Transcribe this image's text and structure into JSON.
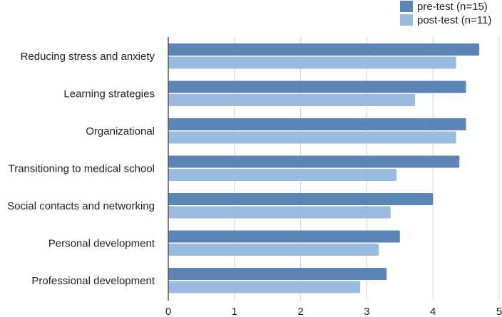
{
  "chart_data": {
    "type": "bar",
    "orientation": "horizontal",
    "categories": [
      "Reducing stress and anxiety",
      "Learning strategies",
      "Organizational",
      "Transitioning to medical school",
      "Social contacts and networking",
      "Personal development",
      "Professional development"
    ],
    "series": [
      {
        "name": "pre-test (n=15)",
        "color": "#5b85b7",
        "values": [
          4.7,
          4.5,
          4.5,
          4.4,
          4.0,
          3.5,
          3.3
        ]
      },
      {
        "name": "post-test (n=11)",
        "color": "#99bbdf",
        "values": [
          4.35,
          3.73,
          4.35,
          3.45,
          3.36,
          3.18,
          2.9
        ]
      }
    ],
    "xlim": [
      0,
      5
    ],
    "xticks": [
      "0",
      "1",
      "2",
      "3",
      "4",
      "5"
    ],
    "grid": true,
    "legend_position": "top-right"
  }
}
